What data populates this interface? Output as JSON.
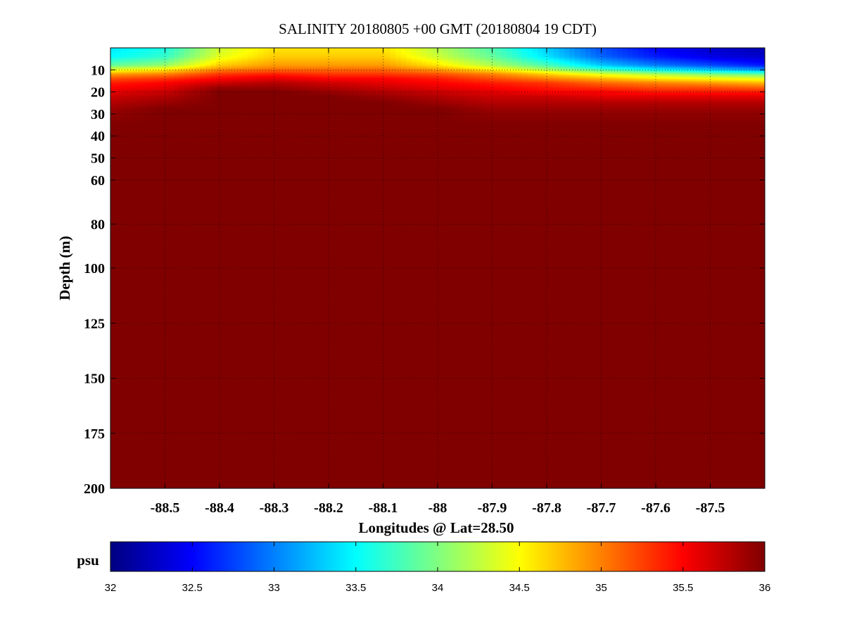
{
  "chart_data": {
    "type": "heatmap",
    "title": "SALINITY 20180805 +00 GMT (20180804 19 CDT)",
    "xlabel": "Longitudes @ Lat=28.50",
    "ylabel": "Depth (m)",
    "x_ticks": [
      "-88.5",
      "-88.4",
      "-88.3",
      "-88.2",
      "-88.1",
      "-88",
      "-87.9",
      "-87.8",
      "-87.7",
      "-87.6",
      "-87.5"
    ],
    "x_tick_values": [
      -88.5,
      -88.4,
      -88.3,
      -88.2,
      -88.1,
      -88.0,
      -87.9,
      -87.8,
      -87.7,
      -87.6,
      -87.5
    ],
    "xlim": [
      -88.6,
      -87.4
    ],
    "y_ticks": [
      "10",
      "20",
      "30",
      "40",
      "50",
      "60",
      "80",
      "100",
      "125",
      "150",
      "175",
      "200"
    ],
    "y_tick_values": [
      10,
      20,
      30,
      40,
      50,
      60,
      80,
      100,
      125,
      150,
      175,
      200
    ],
    "ylim": [
      0,
      200
    ],
    "y_direction": "depth increases downward",
    "grid": true,
    "colorbar": {
      "label": "psu",
      "min": 32,
      "max": 36,
      "ticks": [
        "32",
        "32.5",
        "33",
        "33.5",
        "34",
        "34.5",
        "35",
        "35.5",
        "36"
      ],
      "colormap": "jet"
    },
    "x": [
      -88.6,
      -88.5,
      -88.4,
      -88.3,
      -88.2,
      -88.1,
      -88.0,
      -87.9,
      -87.8,
      -87.7,
      -87.6,
      -87.5,
      -87.4
    ],
    "depths": [
      0,
      4,
      8,
      10,
      12,
      14,
      16,
      18,
      20,
      22,
      25,
      28,
      35,
      200
    ],
    "values": [
      [
        33.4,
        33.6,
        34.3,
        34.6,
        34.6,
        34.6,
        34.2,
        33.8,
        33.3,
        32.8,
        32.5,
        32.3,
        32.2
      ],
      [
        33.5,
        33.7,
        34.4,
        34.7,
        34.7,
        34.7,
        34.3,
        33.9,
        33.4,
        32.9,
        32.6,
        32.4,
        32.3
      ],
      [
        33.9,
        34.1,
        34.7,
        34.9,
        34.9,
        34.9,
        34.6,
        34.2,
        33.8,
        33.3,
        33.0,
        32.8,
        32.6
      ],
      [
        34.4,
        34.6,
        35.0,
        35.1,
        35.1,
        35.1,
        34.9,
        34.6,
        34.2,
        33.8,
        33.5,
        33.3,
        33.1
      ],
      [
        34.9,
        35.0,
        35.3,
        35.4,
        35.3,
        35.3,
        35.2,
        35.0,
        34.7,
        34.4,
        34.2,
        34.0,
        33.9
      ],
      [
        35.2,
        35.3,
        35.5,
        35.6,
        35.5,
        35.5,
        35.4,
        35.2,
        35.0,
        34.8,
        34.6,
        34.5,
        34.4
      ],
      [
        35.4,
        35.5,
        35.7,
        35.8,
        35.7,
        35.6,
        35.5,
        35.4,
        35.3,
        35.1,
        35.0,
        34.9,
        34.8
      ],
      [
        35.5,
        35.6,
        35.9,
        35.9,
        35.8,
        35.7,
        35.6,
        35.5,
        35.4,
        35.3,
        35.2,
        35.2,
        35.1
      ],
      [
        35.6,
        35.7,
        36.0,
        36.0,
        35.9,
        35.8,
        35.7,
        35.6,
        35.5,
        35.5,
        35.4,
        35.4,
        35.4
      ],
      [
        35.7,
        35.8,
        36.0,
        36.0,
        36.0,
        35.9,
        35.8,
        35.7,
        35.7,
        35.6,
        35.6,
        35.6,
        35.6
      ],
      [
        35.8,
        35.9,
        36.0,
        36.0,
        36.0,
        36.0,
        35.9,
        35.8,
        35.8,
        35.8,
        35.8,
        35.8,
        35.8
      ],
      [
        35.9,
        36.0,
        36.0,
        36.0,
        36.0,
        36.0,
        36.0,
        35.9,
        35.9,
        35.9,
        35.9,
        35.9,
        35.9
      ],
      [
        36.0,
        36.0,
        36.0,
        36.0,
        36.0,
        36.0,
        36.0,
        36.0,
        36.0,
        36.0,
        36.0,
        36.0,
        36.0
      ],
      [
        36.0,
        36.0,
        36.0,
        36.0,
        36.0,
        36.0,
        36.0,
        36.0,
        36.0,
        36.0,
        36.0,
        36.0,
        36.0
      ]
    ]
  }
}
